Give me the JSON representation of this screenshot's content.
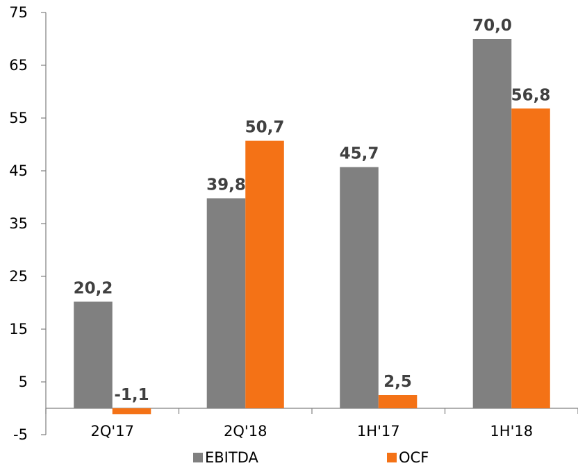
{
  "chart_data": {
    "type": "bar",
    "title": "",
    "xlabel": "",
    "ylabel": "",
    "categories": [
      "2Q'17",
      "2Q'18",
      "1H'17",
      "1H'18"
    ],
    "series": [
      {
        "name": "EBITDA",
        "values": [
          20.2,
          39.8,
          45.7,
          70.0
        ],
        "labels": [
          "20,2",
          "39,8",
          "45,7",
          "70,0"
        ],
        "color": "#808080"
      },
      {
        "name": "OCF",
        "values": [
          -1.1,
          50.7,
          2.5,
          56.8
        ],
        "labels": [
          "-1,1",
          "50,7",
          "2,5",
          "56,8"
        ],
        "color": "#f47216"
      }
    ],
    "ylim": [
      -5,
      75
    ],
    "yticks": [
      -5,
      5,
      15,
      25,
      35,
      45,
      55,
      65,
      75
    ],
    "grid": false,
    "legend_position": "bottom"
  }
}
